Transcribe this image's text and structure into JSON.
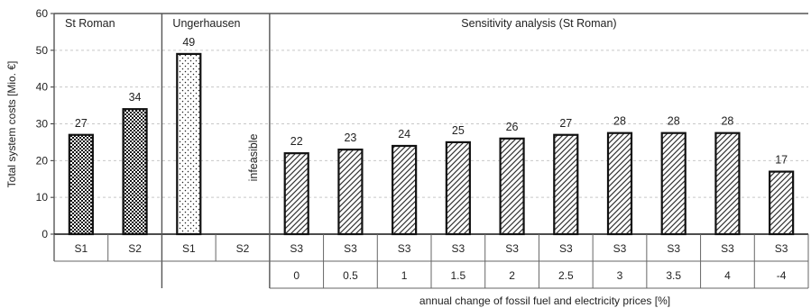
{
  "chart_data": {
    "type": "bar",
    "ylabel": "Total system costs [Mio. €]",
    "xlabel": "annual change of fossil fuel and electricity prices [%]",
    "ylim": [
      0,
      60
    ],
    "yticks": [
      "0",
      "10",
      "20",
      "30",
      "40",
      "50",
      "60"
    ],
    "grid": "horizontal dashed",
    "colors": {
      "bar_outline": "#111111",
      "grid": "#c8c8c8",
      "frame": "#555555"
    },
    "groups": [
      {
        "name": "St Roman",
        "pattern": "checkered"
      },
      {
        "name": "Ungerhausen",
        "pattern": "dotted"
      },
      {
        "name": "Sensitivity analysis (St Roman)",
        "pattern": "diagonal-hatched"
      }
    ],
    "infeasible_text": "infeasible",
    "bars": [
      {
        "group": "St Roman",
        "scenario": "S1",
        "price_change": "",
        "value": 27,
        "label": "27"
      },
      {
        "group": "St Roman",
        "scenario": "S2",
        "price_change": "",
        "value": 34,
        "label": "34"
      },
      {
        "group": "Ungerhausen",
        "scenario": "S1",
        "price_change": "",
        "value": 49,
        "label": "49"
      },
      {
        "group": "Ungerhausen",
        "scenario": "S2",
        "price_change": "",
        "value": null,
        "label": ""
      },
      {
        "group": "Sensitivity analysis (St Roman)",
        "scenario": "S3",
        "price_change": "0",
        "value": 22,
        "label": "22"
      },
      {
        "group": "Sensitivity analysis (St Roman)",
        "scenario": "S3",
        "price_change": "0.5",
        "value": 23,
        "label": "23"
      },
      {
        "group": "Sensitivity analysis (St Roman)",
        "scenario": "S3",
        "price_change": "1",
        "value": 24,
        "label": "24"
      },
      {
        "group": "Sensitivity analysis (St Roman)",
        "scenario": "S3",
        "price_change": "1.5",
        "value": 25,
        "label": "25"
      },
      {
        "group": "Sensitivity analysis (St Roman)",
        "scenario": "S3",
        "price_change": "2",
        "value": 26,
        "label": "26"
      },
      {
        "group": "Sensitivity analysis (St Roman)",
        "scenario": "S3",
        "price_change": "2.5",
        "value": 27,
        "label": "27"
      },
      {
        "group": "Sensitivity analysis (St Roman)",
        "scenario": "S3",
        "price_change": "3",
        "value": 27.5,
        "label": "28"
      },
      {
        "group": "Sensitivity analysis (St Roman)",
        "scenario": "S3",
        "price_change": "3.5",
        "value": 27.5,
        "label": "28"
      },
      {
        "group": "Sensitivity analysis (St Roman)",
        "scenario": "S3",
        "price_change": "4",
        "value": 27.5,
        "label": "28"
      },
      {
        "group": "Sensitivity analysis (St Roman)",
        "scenario": "S3",
        "price_change": "-4",
        "value": 17,
        "label": "17"
      }
    ]
  }
}
